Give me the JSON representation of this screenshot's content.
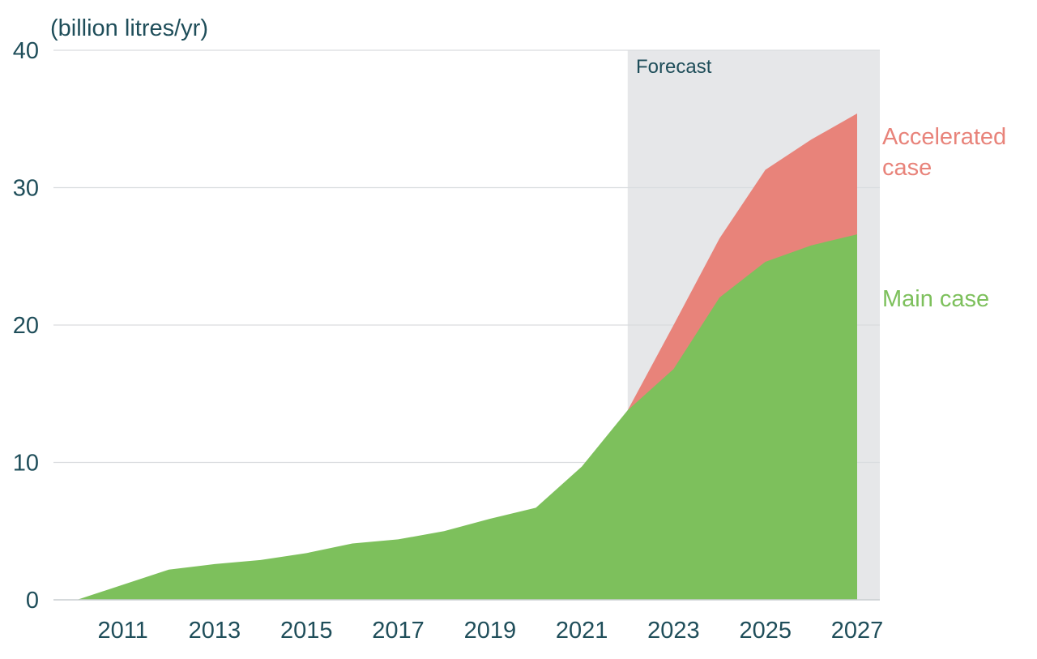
{
  "chart_data": {
    "type": "area",
    "ylabel": "(billion litres/yr)",
    "ylim": [
      0,
      40
    ],
    "yticks": [
      0,
      10,
      20,
      30,
      40
    ],
    "xlim": [
      2010,
      2027
    ],
    "xticks": [
      2011,
      2013,
      2015,
      2017,
      2019,
      2021,
      2023,
      2025,
      2027
    ],
    "grid": "horizontal",
    "forecast": {
      "label": "Forecast",
      "from": 2022,
      "to": 2027.5,
      "color": "#e6e7e9"
    },
    "x": [
      2010,
      2011,
      2012,
      2013,
      2014,
      2015,
      2016,
      2017,
      2018,
      2019,
      2020,
      2021,
      2022,
      2023,
      2024,
      2025,
      2026,
      2027
    ],
    "series": [
      {
        "name": "Main case",
        "color": "#7dc05c",
        "values": [
          0,
          1.1,
          2.2,
          2.6,
          2.9,
          3.4,
          4.1,
          4.4,
          5.0,
          5.9,
          6.7,
          9.7,
          13.8,
          16.8,
          22.0,
          24.6,
          25.8,
          26.6
        ]
      },
      {
        "name": "Accelerated case",
        "color": "#e8837a",
        "values": [
          null,
          null,
          null,
          null,
          null,
          null,
          null,
          null,
          null,
          null,
          null,
          null,
          13.8,
          20.0,
          26.3,
          31.3,
          33.5,
          35.4
        ]
      }
    ],
    "series_labels": [
      {
        "series": "Accelerated case",
        "lines": [
          "Accelerated",
          "case"
        ]
      },
      {
        "series": "Main case",
        "lines": [
          "Main case"
        ]
      }
    ]
  }
}
